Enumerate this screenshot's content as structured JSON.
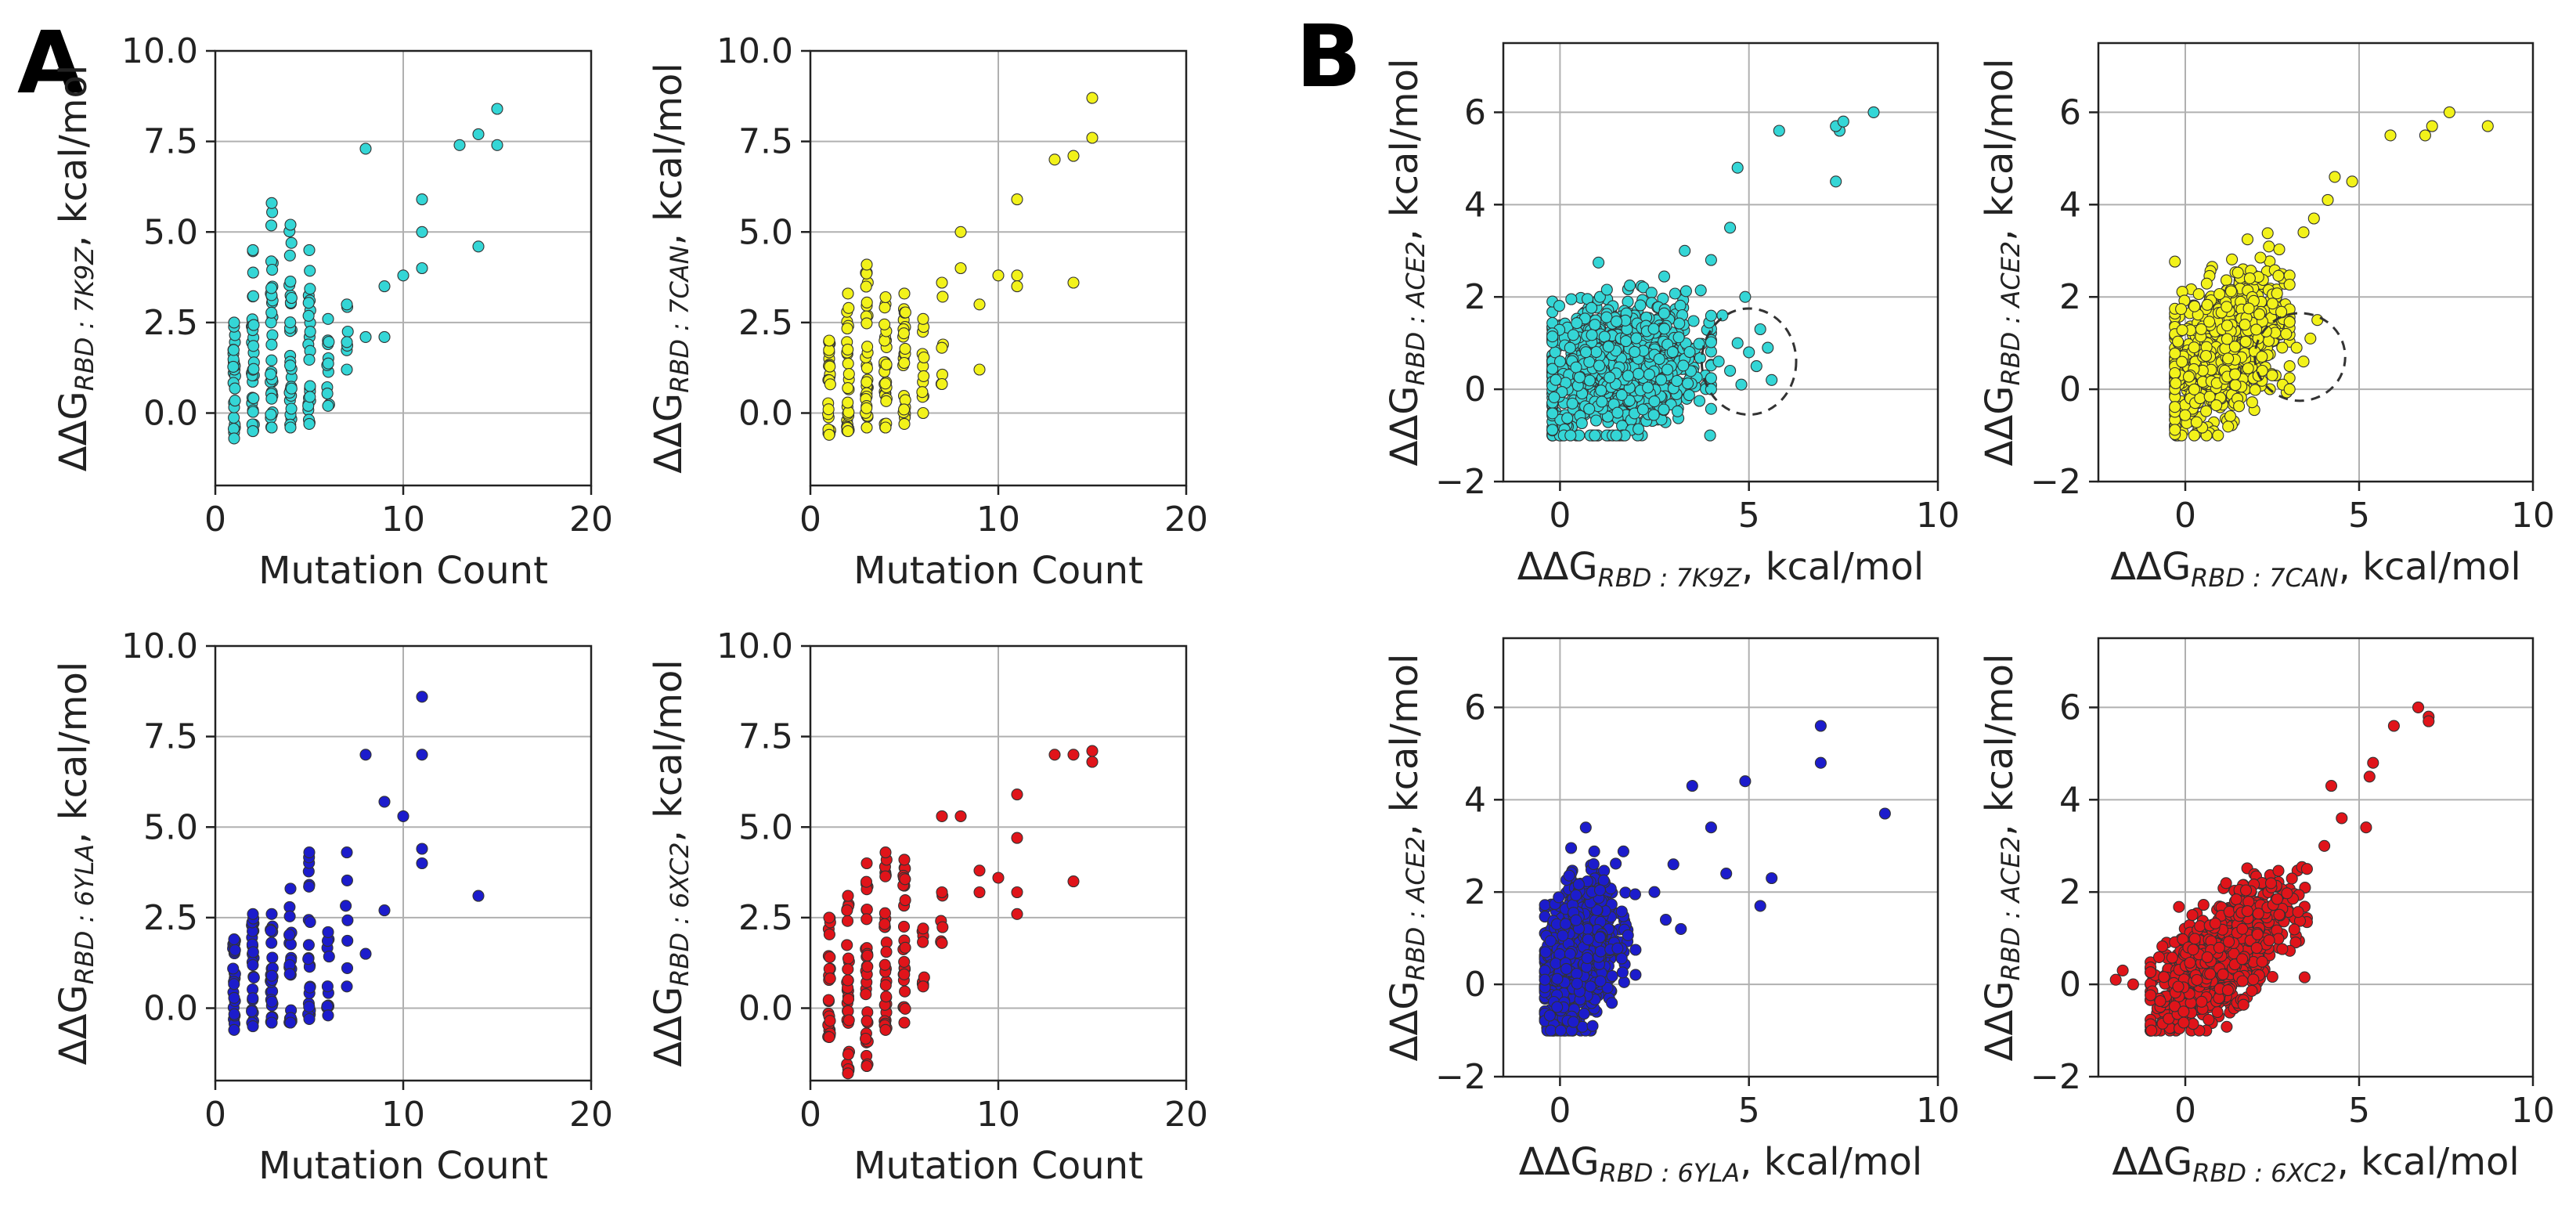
{
  "panel_labels": {
    "a": "A",
    "b": "B"
  },
  "chart_data": [
    {
      "id": "a1",
      "type": "scatter",
      "panel": "A",
      "color": "#34d6d6",
      "title": "",
      "xlabel": "Mutation Count",
      "ylabel": {
        "pre": "ΔΔG",
        "sub": "RBD : 7K9Z",
        "post": ", kcal/mol"
      },
      "xlim": [
        0,
        20
      ],
      "ylim": [
        -2,
        10
      ],
      "xticks": [
        0,
        10,
        20
      ],
      "yticks": [
        0.0,
        2.5,
        5.0,
        7.5,
        10.0
      ],
      "xtick_labels": [
        "0",
        "10",
        "20"
      ],
      "ytick_labels": [
        "0.0",
        "2.5",
        "5.0",
        "7.5",
        "10.0"
      ],
      "grid": true,
      "columns": [
        {
          "x": 1,
          "ymin": -0.7,
          "ymax": 2.5,
          "n": 24
        },
        {
          "x": 2,
          "ymin": -0.5,
          "ymax": 4.5,
          "n": 30
        },
        {
          "x": 3,
          "ymin": -0.4,
          "ymax": 5.8,
          "n": 32
        },
        {
          "x": 4,
          "ymin": -0.4,
          "ymax": 5.2,
          "n": 28
        },
        {
          "x": 5,
          "ymin": -0.3,
          "ymax": 4.5,
          "n": 24
        },
        {
          "x": 6,
          "ymin": 0.2,
          "ymax": 2.6,
          "n": 10
        },
        {
          "x": 7,
          "ymin": 1.2,
          "ymax": 3.0,
          "n": 5
        }
      ],
      "points": [
        [
          8,
          7.3
        ],
        [
          8,
          2.1
        ],
        [
          9,
          3.5
        ],
        [
          9,
          2.1
        ],
        [
          10,
          3.8
        ],
        [
          11,
          5.9
        ],
        [
          11,
          5.0
        ],
        [
          11,
          4.0
        ],
        [
          13,
          7.4
        ],
        [
          14,
          7.7
        ],
        [
          14,
          4.6
        ],
        [
          15,
          8.4
        ],
        [
          15,
          7.4
        ]
      ]
    },
    {
      "id": "a2",
      "type": "scatter",
      "panel": "A",
      "color": "#f2f21a",
      "title": "",
      "xlabel": "Mutation Count",
      "ylabel": {
        "pre": "ΔΔG",
        "sub": "RBD : 7CAN",
        "post": ", kcal/mol"
      },
      "xlim": [
        0,
        20
      ],
      "ylim": [
        -2,
        10
      ],
      "xticks": [
        0,
        10,
        20
      ],
      "yticks": [
        0.0,
        2.5,
        5.0,
        7.5,
        10.0
      ],
      "xtick_labels": [
        "0",
        "10",
        "20"
      ],
      "ytick_labels": [
        "0.0",
        "2.5",
        "5.0",
        "7.5",
        "10.0"
      ],
      "grid": true,
      "columns": [
        {
          "x": 1,
          "ymin": -0.6,
          "ymax": 2.0,
          "n": 22
        },
        {
          "x": 2,
          "ymin": -0.5,
          "ymax": 3.3,
          "n": 28
        },
        {
          "x": 3,
          "ymin": -0.4,
          "ymax": 4.1,
          "n": 30
        },
        {
          "x": 4,
          "ymin": -0.4,
          "ymax": 3.2,
          "n": 26
        },
        {
          "x": 5,
          "ymin": -0.3,
          "ymax": 3.3,
          "n": 22
        },
        {
          "x": 6,
          "ymin": 0.0,
          "ymax": 2.6,
          "n": 10
        },
        {
          "x": 7,
          "ymin": 0.8,
          "ymax": 3.6,
          "n": 5
        }
      ],
      "points": [
        [
          8,
          4.0
        ],
        [
          8,
          5.0
        ],
        [
          9,
          3.0
        ],
        [
          9,
          1.2
        ],
        [
          10,
          3.8
        ],
        [
          11,
          5.9
        ],
        [
          11,
          3.8
        ],
        [
          11,
          3.5
        ],
        [
          13,
          7.0
        ],
        [
          14,
          7.1
        ],
        [
          14,
          3.6
        ],
        [
          15,
          8.7
        ],
        [
          15,
          7.6
        ]
      ]
    },
    {
      "id": "a3",
      "type": "scatter",
      "panel": "A",
      "color": "#1c1ccc",
      "title": "",
      "xlabel": "Mutation Count",
      "ylabel": {
        "pre": "ΔΔG",
        "sub": "RBD : 6YLA",
        "post": ", kcal/mol"
      },
      "xlim": [
        0,
        20
      ],
      "ylim": [
        -2,
        10
      ],
      "xticks": [
        0,
        10,
        20
      ],
      "yticks": [
        0.0,
        2.5,
        5.0,
        7.5,
        10.0
      ],
      "xtick_labels": [
        "0",
        "10",
        "20"
      ],
      "ytick_labels": [
        "0.0",
        "2.5",
        "5.0",
        "7.5",
        "10.0"
      ],
      "grid": true,
      "columns": [
        {
          "x": 1,
          "ymin": -0.6,
          "ymax": 1.9,
          "n": 22
        },
        {
          "x": 2,
          "ymin": -0.5,
          "ymax": 2.6,
          "n": 26
        },
        {
          "x": 3,
          "ymin": -0.4,
          "ymax": 2.6,
          "n": 26
        },
        {
          "x": 4,
          "ymin": -0.4,
          "ymax": 3.3,
          "n": 24
        },
        {
          "x": 5,
          "ymin": -0.3,
          "ymax": 4.3,
          "n": 20
        },
        {
          "x": 6,
          "ymin": -0.2,
          "ymax": 2.1,
          "n": 10
        },
        {
          "x": 7,
          "ymin": 0.6,
          "ymax": 4.3,
          "n": 5
        }
      ],
      "points": [
        [
          8,
          7.0
        ],
        [
          8,
          1.5
        ],
        [
          9,
          5.7
        ],
        [
          9,
          2.7
        ],
        [
          10,
          5.3
        ],
        [
          11,
          8.6
        ],
        [
          11,
          7.0
        ],
        [
          11,
          4.4
        ],
        [
          11,
          4.0
        ],
        [
          14,
          3.1
        ]
      ]
    },
    {
      "id": "a4",
      "type": "scatter",
      "panel": "A",
      "color": "#e0141a",
      "title": "",
      "xlabel": "Mutation Count",
      "ylabel": {
        "pre": "ΔΔG",
        "sub": "RBD : 6XC2",
        "post": ", kcal/mol"
      },
      "xlim": [
        0,
        20
      ],
      "ylim": [
        -2,
        10
      ],
      "xticks": [
        0,
        10,
        20
      ],
      "yticks": [
        0.0,
        2.5,
        5.0,
        7.5,
        10.0
      ],
      "xtick_labels": [
        "0",
        "10",
        "20"
      ],
      "ytick_labels": [
        "0.0",
        "2.5",
        "5.0",
        "7.5",
        "10.0"
      ],
      "grid": true,
      "columns": [
        {
          "x": 1,
          "ymin": -0.8,
          "ymax": 2.5,
          "n": 24
        },
        {
          "x": 2,
          "ymin": -1.8,
          "ymax": 3.1,
          "n": 30
        },
        {
          "x": 3,
          "ymin": -1.6,
          "ymax": 4.0,
          "n": 30
        },
        {
          "x": 4,
          "ymin": -0.6,
          "ymax": 4.3,
          "n": 28
        },
        {
          "x": 5,
          "ymin": -0.4,
          "ymax": 4.1,
          "n": 24
        },
        {
          "x": 6,
          "ymin": 0.6,
          "ymax": 2.2,
          "n": 8
        },
        {
          "x": 7,
          "ymin": 1.8,
          "ymax": 3.2,
          "n": 5
        }
      ],
      "points": [
        [
          7,
          5.3
        ],
        [
          8,
          5.3
        ],
        [
          9,
          3.8
        ],
        [
          9,
          3.2
        ],
        [
          10,
          3.6
        ],
        [
          11,
          5.9
        ],
        [
          11,
          4.7
        ],
        [
          11,
          3.2
        ],
        [
          11,
          2.6
        ],
        [
          13,
          7.0
        ],
        [
          14,
          7.0
        ],
        [
          14,
          3.5
        ],
        [
          15,
          7.1
        ],
        [
          15,
          6.8
        ]
      ]
    },
    {
      "id": "b1",
      "type": "scatter",
      "panel": "B",
      "color": "#34d6d6",
      "title": "",
      "xlabel": {
        "pre": "ΔΔG",
        "sub": "RBD : 7K9Z",
        "post": ", kcal/mol"
      },
      "ylabel": {
        "pre": "ΔΔG",
        "sub": "RBD : ACE2",
        "post": ", kcal/mol"
      },
      "xlim": [
        -1.5,
        10
      ],
      "ylim": [
        -2,
        7.5
      ],
      "xticks": [
        0,
        5,
        10
      ],
      "yticks": [
        -2,
        0,
        2,
        4,
        6
      ],
      "xtick_labels": [
        "0",
        "5",
        "10"
      ],
      "ytick_labels": [
        "−2",
        "0",
        "2",
        "4",
        "6"
      ],
      "grid": true,
      "cluster": {
        "n": 950,
        "xmin": -0.2,
        "xmax": 4.0,
        "center": [
          1.5,
          0.5
        ],
        "sx": 1.1,
        "sy": 0.7,
        "slope": 0.1
      },
      "points": [
        [
          4.2,
          0.6
        ],
        [
          4.5,
          0.4
        ],
        [
          4.8,
          0.1
        ],
        [
          5.0,
          0.8
        ],
        [
          5.2,
          0.5
        ],
        [
          5.5,
          0.9
        ],
        [
          5.6,
          0.2
        ],
        [
          4.7,
          1.0
        ],
        [
          4.9,
          2.0
        ],
        [
          4.3,
          1.6
        ],
        [
          4.5,
          3.5
        ],
        [
          4.7,
          4.8
        ],
        [
          5.3,
          1.3
        ],
        [
          5.8,
          5.6
        ],
        [
          7.4,
          5.6
        ],
        [
          7.3,
          5.7
        ],
        [
          7.5,
          5.8
        ],
        [
          7.3,
          4.5
        ],
        [
          8.3,
          6.0
        ],
        [
          3.3,
          3.0
        ],
        [
          4.0,
          2.8
        ]
      ],
      "annotation_circle": {
        "cx": 5.0,
        "cy": 0.6,
        "rx": 1.25,
        "ry": 1.15
      }
    },
    {
      "id": "b2",
      "type": "scatter",
      "panel": "B",
      "color": "#f2f21a",
      "title": "",
      "xlabel": {
        "pre": "ΔΔG",
        "sub": "RBD : 7CAN",
        "post": ", kcal/mol"
      },
      "ylabel": {
        "pre": "ΔΔG",
        "sub": "RBD : ACE2",
        "post": ", kcal/mol"
      },
      "xlim": [
        -2.5,
        10
      ],
      "ylim": [
        -2,
        7.5
      ],
      "xticks": [
        0,
        5,
        10
      ],
      "yticks": [
        -2,
        0,
        2,
        4,
        6
      ],
      "xtick_labels": [
        "0",
        "5",
        "10"
      ],
      "ytick_labels": [
        "−2",
        "0",
        "2",
        "4",
        "6"
      ],
      "grid": true,
      "cluster": {
        "n": 950,
        "xmin": -0.3,
        "xmax": 3.0,
        "center": [
          1.1,
          0.9
        ],
        "sx": 0.8,
        "sy": 0.7,
        "slope": 0.45
      },
      "points": [
        [
          2.5,
          0.3
        ],
        [
          2.8,
          0.1
        ],
        [
          3.0,
          0.5
        ],
        [
          3.2,
          0.9
        ],
        [
          3.4,
          0.6
        ],
        [
          3.6,
          1.1
        ],
        [
          3.0,
          0.0
        ],
        [
          3.8,
          1.5
        ],
        [
          2.9,
          1.2
        ],
        [
          3.4,
          3.4
        ],
        [
          3.7,
          3.7
        ],
        [
          4.1,
          4.1
        ],
        [
          4.8,
          4.5
        ],
        [
          4.3,
          4.6
        ],
        [
          5.9,
          5.5
        ],
        [
          6.9,
          5.5
        ],
        [
          7.1,
          5.7
        ],
        [
          7.6,
          6.0
        ],
        [
          8.7,
          5.7
        ]
      ],
      "annotation_circle": {
        "cx": 3.3,
        "cy": 0.7,
        "rx": 1.3,
        "ry": 0.95
      }
    },
    {
      "id": "b3",
      "type": "scatter",
      "panel": "B",
      "color": "#1c1ccc",
      "title": "",
      "xlabel": {
        "pre": "ΔΔG",
        "sub": "RBD : 6YLA",
        "post": ", kcal/mol"
      },
      "ylabel": {
        "pre": "ΔΔG",
        "sub": "RBD : ACE2",
        "post": ", kcal/mol"
      },
      "xlim": [
        -1.5,
        10
      ],
      "ylim": [
        -2,
        7.5
      ],
      "xticks": [
        0,
        5,
        10
      ],
      "yticks": [
        -2,
        0,
        2,
        4,
        6
      ],
      "xtick_labels": [
        "0",
        "5",
        "10"
      ],
      "ytick_labels": [
        "−2",
        "0",
        "2",
        "4",
        "6"
      ],
      "grid": true,
      "cluster": {
        "n": 900,
        "xmin": -0.4,
        "xmax": 2.0,
        "center": [
          0.5,
          0.6
        ],
        "sx": 0.5,
        "sy": 0.75,
        "slope": 0.6
      },
      "points": [
        [
          2.5,
          2.0
        ],
        [
          3.0,
          2.6
        ],
        [
          3.5,
          4.3
        ],
        [
          4.0,
          3.4
        ],
        [
          4.4,
          2.4
        ],
        [
          4.9,
          4.4
        ],
        [
          5.3,
          1.7
        ],
        [
          5.6,
          2.3
        ],
        [
          3.2,
          1.2
        ],
        [
          2.8,
          1.4
        ],
        [
          6.9,
          5.6
        ],
        [
          6.9,
          4.8
        ],
        [
          8.6,
          3.7
        ]
      ]
    },
    {
      "id": "b4",
      "type": "scatter",
      "panel": "B",
      "color": "#e0141a",
      "title": "",
      "xlabel": {
        "pre": "ΔΔG",
        "sub": "RBD : 6XC2",
        "post": ", kcal/mol"
      },
      "ylabel": {
        "pre": "ΔΔG",
        "sub": "RBD : ACE2",
        "post": ", kcal/mol"
      },
      "xlim": [
        -2.5,
        10
      ],
      "ylim": [
        -2,
        7.5
      ],
      "xticks": [
        0,
        5,
        10
      ],
      "yticks": [
        -2,
        0,
        2,
        4,
        6
      ],
      "xtick_labels": [
        "0",
        "5",
        "10"
      ],
      "ytick_labels": [
        "−2",
        "0",
        "2",
        "4",
        "6"
      ],
      "grid": true,
      "cluster": {
        "n": 950,
        "xmin": -1.0,
        "xmax": 3.5,
        "center": [
          1.0,
          0.6
        ],
        "sx": 0.95,
        "sy": 0.55,
        "slope": 0.5
      },
      "points": [
        [
          -2.0,
          0.1
        ],
        [
          -1.8,
          0.3
        ],
        [
          -1.5,
          0.0
        ],
        [
          3.5,
          2.5
        ],
        [
          4.0,
          3.0
        ],
        [
          4.2,
          4.3
        ],
        [
          4.5,
          3.6
        ],
        [
          5.2,
          3.4
        ],
        [
          5.3,
          4.5
        ],
        [
          5.4,
          4.8
        ],
        [
          6.0,
          5.6
        ],
        [
          6.7,
          6.0
        ],
        [
          7.0,
          5.8
        ],
        [
          7.0,
          5.7
        ]
      ]
    }
  ]
}
